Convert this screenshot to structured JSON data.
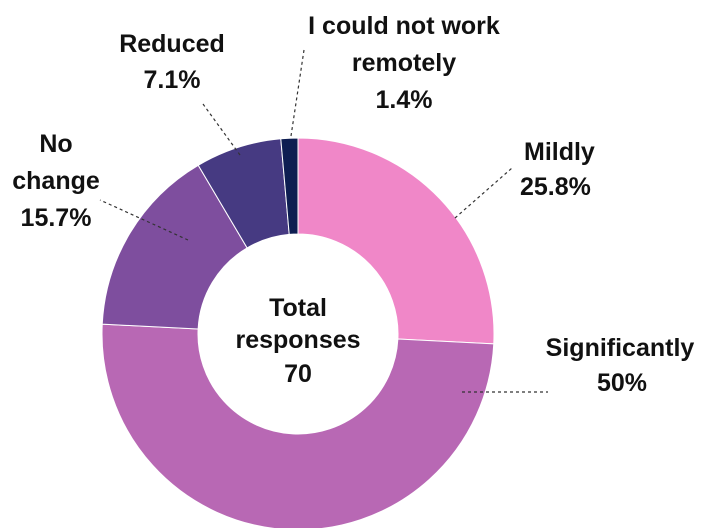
{
  "chart_data": {
    "type": "pie",
    "variant": "donut",
    "slices": [
      {
        "label": "Mildly",
        "value": 25.8,
        "value_label": "25.8%",
        "color": "#F087C8"
      },
      {
        "label": "Significantly",
        "value": 50,
        "value_label": "50%",
        "color": "#B868B4"
      },
      {
        "label": "No change",
        "value": 15.7,
        "value_label": "15.7%",
        "color": "#7E4E9E"
      },
      {
        "label": "Reduced",
        "value": 7.1,
        "value_label": "7.1%",
        "color": "#463A82"
      },
      {
        "label": "I could not work remotely",
        "value": 1.4,
        "value_label": "1.4%",
        "color": "#0E1E52"
      }
    ],
    "center_text": [
      "Total",
      "responses",
      "70"
    ],
    "legend": "none"
  }
}
